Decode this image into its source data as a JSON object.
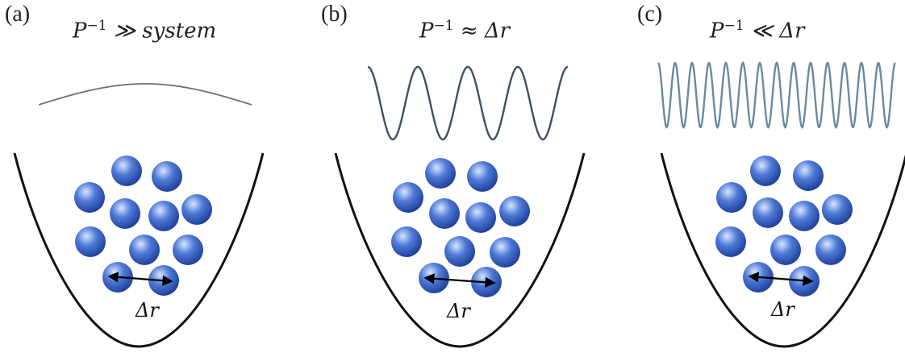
{
  "panels": [
    {
      "label": "(a)",
      "title_base": "P",
      "title_exp": "−1",
      "title_rest": " ≫ system",
      "wave_cycles": 0.5,
      "wave_color": "#707070",
      "distance_label": "Δr"
    },
    {
      "label": "(b)",
      "title_base": "P",
      "title_exp": "−1",
      "title_rest": " ≈ Δr",
      "wave_cycles": 4,
      "wave_color": "#3f4f66",
      "distance_label": "Δr"
    },
    {
      "label": "(c)",
      "title_base": "P",
      "title_exp": "−1",
      "title_rest": " ≪ Δr",
      "wave_cycles": 14,
      "wave_color": "#6a8aa0",
      "distance_label": "Δr"
    }
  ],
  "colors": {
    "ball_highlight": "#d7e6ff",
    "ball_mid": "#4f7ad6",
    "ball_dark": "#1d3f9a",
    "well": "#111111",
    "arrow": "#000000"
  }
}
